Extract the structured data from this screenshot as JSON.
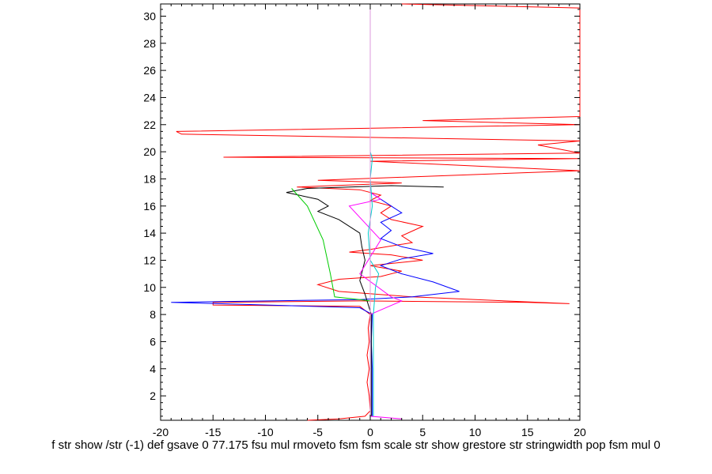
{
  "chart_data": {
    "type": "line",
    "title": "",
    "xlabel": "f str show /str (-1) def gsave 0 77.175 fsu mul rmoveto fsm fsm scale str show grestore str stringwidth pop fsm mul 0",
    "ylabel": "",
    "xlim": [
      -20,
      20
    ],
    "ylim": [
      0.2,
      30.9
    ],
    "x_ticks": [
      -20,
      -15,
      -10,
      -5,
      0,
      5,
      10,
      15,
      20
    ],
    "y_ticks": [
      2,
      4,
      6,
      8,
      10,
      12,
      14,
      16,
      18,
      20,
      22,
      24,
      26,
      28,
      30
    ],
    "grid": false,
    "legend": "none",
    "series": [
      {
        "color": "#ff0000",
        "points": [
          [
            -6,
            0.2
          ],
          [
            -3,
            0.3
          ],
          [
            -0.5,
            0.5
          ],
          [
            0,
            0.9
          ],
          [
            -0.1,
            2
          ],
          [
            -0.3,
            3
          ],
          [
            -0.1,
            4
          ],
          [
            -0.3,
            5
          ],
          [
            -0.1,
            6
          ],
          [
            -0.2,
            7
          ],
          [
            0,
            8
          ],
          [
            -1,
            8.6
          ],
          [
            -15,
            8.7
          ],
          [
            -15,
            8.9
          ],
          [
            -1,
            9
          ],
          [
            15,
            8.9
          ],
          [
            19,
            8.8
          ],
          [
            4,
            9.3
          ],
          [
            -3,
            9.7
          ],
          [
            -5,
            10.2
          ],
          [
            -3,
            10.6
          ],
          [
            1,
            10.8
          ],
          [
            3,
            11.2
          ],
          [
            0,
            11.6
          ],
          [
            5,
            12
          ],
          [
            2,
            12.4
          ],
          [
            -2,
            12.6
          ],
          [
            0,
            12.8
          ],
          [
            4,
            13.3
          ],
          [
            3,
            13.8
          ],
          [
            5,
            14.5
          ],
          [
            2,
            15
          ],
          [
            1,
            15.5
          ],
          [
            2,
            16
          ],
          [
            0,
            16.4
          ],
          [
            1,
            16.8
          ],
          [
            -1,
            17.2
          ],
          [
            -7,
            17.4
          ],
          [
            3,
            17.7
          ],
          [
            -5,
            17.9
          ],
          [
            20,
            18.6
          ],
          [
            0,
            19.3
          ],
          [
            20,
            19.5
          ],
          [
            -14,
            19.6
          ],
          [
            20,
            19.9
          ],
          [
            16,
            20.5
          ],
          [
            20,
            20.8
          ],
          [
            -18,
            21.3
          ],
          [
            -18.5,
            21.5
          ],
          [
            20,
            22
          ],
          [
            5,
            22.3
          ],
          [
            20,
            22.6
          ],
          [
            20,
            30.6
          ],
          [
            3,
            30.9
          ]
        ]
      },
      {
        "color": "#0000ff",
        "points": [
          [
            0.2,
            0.5
          ],
          [
            0.2,
            4
          ],
          [
            0.1,
            6
          ],
          [
            0.2,
            8
          ],
          [
            -1,
            8.5
          ],
          [
            -19,
            8.9
          ],
          [
            -1,
            9.1
          ],
          [
            4,
            9.3
          ],
          [
            8.5,
            9.7
          ],
          [
            6,
            10.4
          ],
          [
            3,
            11
          ],
          [
            1,
            11.6
          ],
          [
            3,
            12.1
          ],
          [
            6,
            12.5
          ],
          [
            3,
            13
          ],
          [
            1,
            13.6
          ],
          [
            2,
            14.2
          ],
          [
            1,
            14.8
          ],
          [
            3,
            15.5
          ],
          [
            2,
            16
          ],
          [
            1,
            16.5
          ],
          [
            0,
            17
          ]
        ]
      },
      {
        "color": "#000000",
        "points": [
          [
            0.1,
            0.5
          ],
          [
            0.1,
            8
          ],
          [
            -0.5,
            9.5
          ],
          [
            -1,
            10.5
          ],
          [
            -0.5,
            12
          ],
          [
            -0.8,
            13
          ],
          [
            -1,
            14
          ],
          [
            -3,
            15
          ],
          [
            -5,
            15.6
          ],
          [
            -4,
            16
          ],
          [
            -5,
            16.5
          ],
          [
            -8,
            17
          ],
          [
            -6,
            17.3
          ],
          [
            2,
            17.5
          ],
          [
            7,
            17.4
          ]
        ]
      },
      {
        "color": "#00cc00",
        "points": [
          [
            -7.5,
            17.3
          ],
          [
            -6,
            16
          ],
          [
            -4.5,
            13.5
          ],
          [
            -3.8,
            11
          ],
          [
            -3.4,
            9.3
          ],
          [
            -1,
            9.1
          ],
          [
            0,
            9
          ]
        ]
      },
      {
        "color": "#ff00ff",
        "points": [
          [
            3,
            0.3
          ],
          [
            0,
            0.5
          ],
          [
            0,
            8
          ],
          [
            3,
            9
          ],
          [
            2,
            9.3
          ],
          [
            -1,
            11
          ],
          [
            1,
            13.5
          ],
          [
            -2,
            16
          ],
          [
            1,
            16.5
          ],
          [
            0,
            17
          ]
        ]
      },
      {
        "color": "#00cccc",
        "points": [
          [
            0.3,
            0.5
          ],
          [
            0.3,
            3
          ],
          [
            0.3,
            6
          ],
          [
            0.3,
            8
          ],
          [
            0.5,
            10
          ],
          [
            0.8,
            11
          ],
          [
            0,
            12
          ],
          [
            -0.2,
            14
          ],
          [
            0.2,
            16
          ],
          [
            0,
            18
          ],
          [
            0.2,
            19.5
          ],
          [
            0,
            20
          ],
          [
            0,
            21
          ]
        ]
      },
      {
        "color": "#dd99dd",
        "points": [
          [
            0,
            0.2
          ],
          [
            0,
            30.9
          ]
        ]
      }
    ]
  }
}
